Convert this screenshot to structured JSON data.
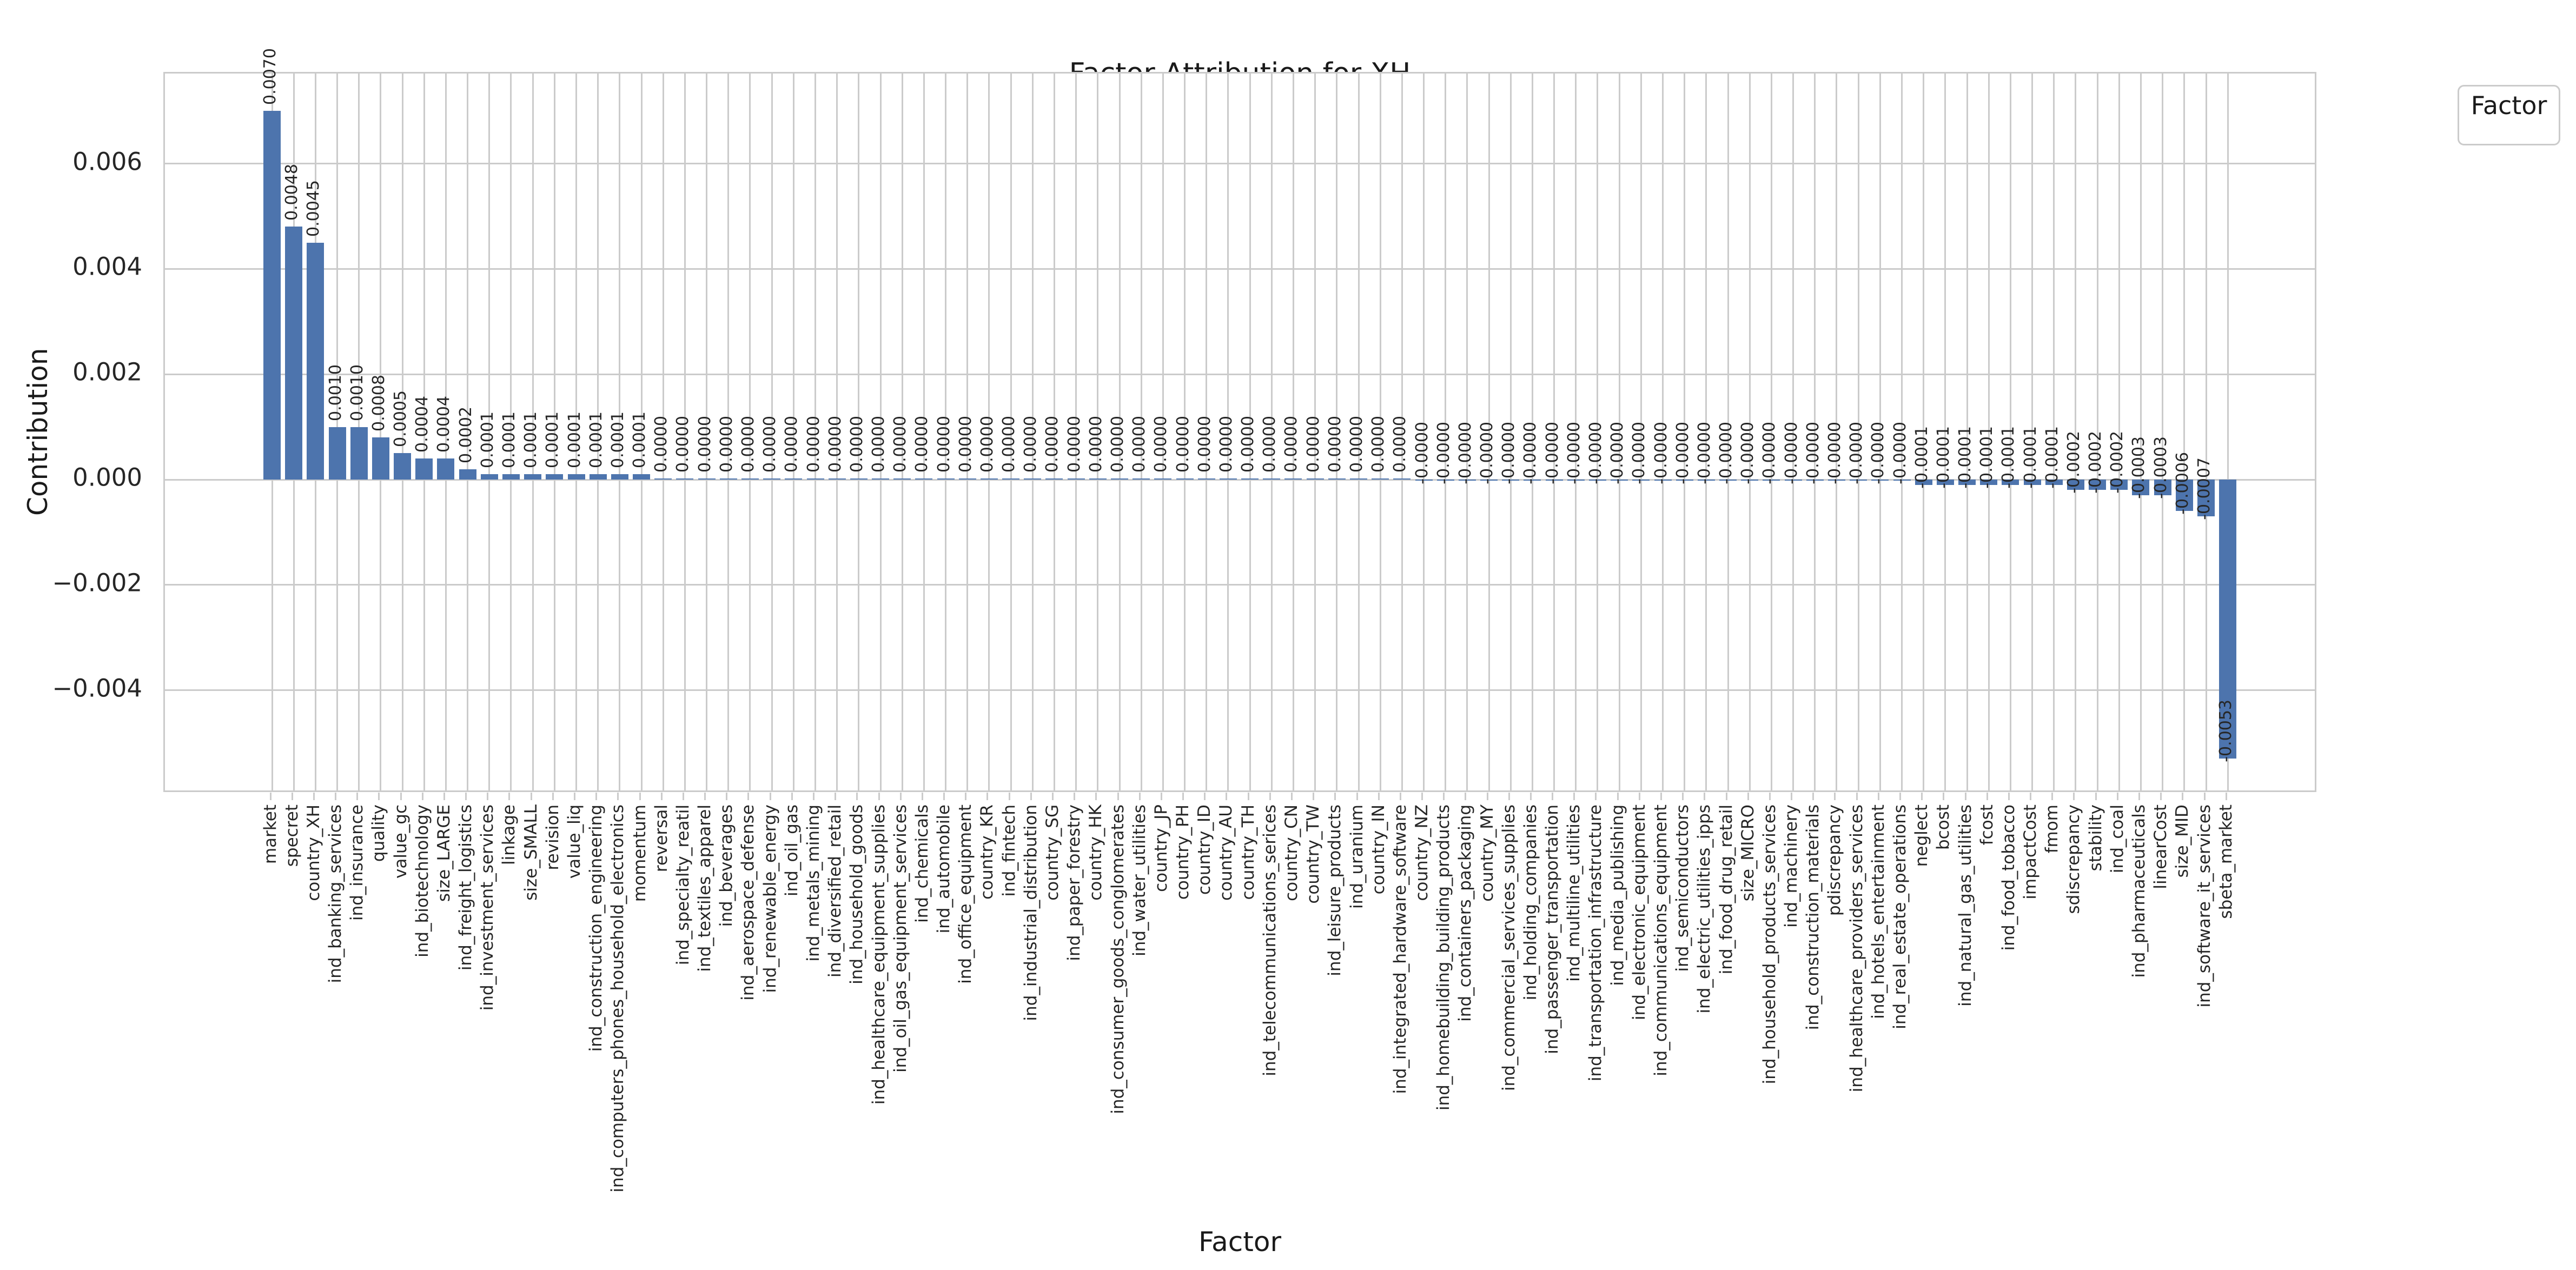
{
  "figure": {
    "title": "Factor Attribution for XH",
    "xlabel": "Factor",
    "ylabel": "Contribution"
  },
  "legend": {
    "title": "Factor",
    "position": "upper right, outside plot"
  },
  "colors": {
    "bar": "#4D74AD",
    "grid": "#cbcbcb",
    "text": "#262626",
    "background": "#ffffff"
  },
  "chart_data": {
    "type": "bar",
    "title": "Factor Attribution for XH",
    "xlabel": "Factor",
    "ylabel": "Contribution",
    "legend_title": "Factor",
    "grid": true,
    "ylim": [
      -0.006,
      0.0077
    ],
    "ytick_values": [
      0.006,
      0.004,
      0.002,
      0.0,
      -0.002,
      -0.004
    ],
    "ytick_labels": [
      "0.006",
      "0.004",
      "0.002",
      "0.000",
      "−0.002",
      "−0.004"
    ],
    "categories": [
      "market",
      "specret",
      "country_XH",
      "ind_banking_services",
      "ind_insurance",
      "quality",
      "value_gc",
      "ind_biotechnology",
      "size_LARGE",
      "ind_freight_logistics",
      "ind_investment_services",
      "linkage",
      "size_SMALL",
      "revision",
      "value_liq",
      "ind_construction_engineering",
      "ind_computers_phones_household_electronics",
      "momentum",
      "reversal",
      "ind_specialty_reatil",
      "ind_textiles_apparel",
      "ind_beverages",
      "ind_aerospace_defense",
      "ind_renewable_energy",
      "ind_oil_gas",
      "ind_metals_mining",
      "ind_diversified_retail",
      "ind_household_goods",
      "ind_healthcare_equipment_supplies",
      "ind_oil_gas_equipment_services",
      "ind_chemicals",
      "ind_automobile",
      "ind_office_equipment",
      "country_KR",
      "ind_fintech",
      "ind_industrial_distribution",
      "country_SG",
      "ind_paper_forestry",
      "country_HK",
      "ind_consumer_goods_conglomerates",
      "ind_water_utilities",
      "country_JP",
      "country_PH",
      "country_ID",
      "country_AU",
      "country_TH",
      "ind_telecommunications_serices",
      "country_CN",
      "country_TW",
      "ind_leisure_products",
      "ind_uranium",
      "country_IN",
      "ind_integrated_hardware_software",
      "country_NZ",
      "ind_homebuilding_building_products",
      "ind_containers_packaging",
      "country_MY",
      "ind_commercial_services_supplies",
      "ind_holding_companies",
      "ind_passenger_transportation",
      "ind_multiline_utilities",
      "ind_transportation_infrastructure",
      "ind_media_publishing",
      "ind_electronic_equipment",
      "ind_communications_equipment",
      "ind_semiconductors",
      "ind_electric_utilities_ipps",
      "ind_food_drug_retail",
      "size_MICRO",
      "ind_household_products_services",
      "ind_machinery",
      "ind_construction_materials",
      "pdiscrepancy",
      "ind_healthcare_providers_services",
      "ind_hotels_entertainment",
      "ind_real_estate_operations",
      "neglect",
      "bcost",
      "ind_natural_gas_utilities",
      "fcost",
      "ind_food_tobacco",
      "impactCost",
      "fmom",
      "sdiscrepancy",
      "stability",
      "ind_coal",
      "ind_pharmaceuticals",
      "linearCost",
      "size_MID",
      "ind_software_it_services",
      "sbeta_market"
    ],
    "values": [
      0.007,
      0.0048,
      0.0045,
      0.001,
      0.001,
      0.0008,
      0.0005,
      0.0004,
      0.0004,
      0.0002,
      0.0001,
      0.0001,
      0.0001,
      0.0001,
      0.0001,
      0.0001,
      0.0001,
      0.0001,
      0.0,
      0.0,
      0.0,
      0.0,
      0.0,
      0.0,
      0.0,
      0.0,
      0.0,
      0.0,
      0.0,
      0.0,
      0.0,
      0.0,
      0.0,
      0.0,
      0.0,
      0.0,
      0.0,
      0.0,
      0.0,
      0.0,
      0.0,
      0.0,
      0.0,
      0.0,
      0.0,
      0.0,
      0.0,
      0.0,
      0.0,
      0.0,
      0.0,
      0.0,
      0.0,
      -0.0,
      -0.0,
      -0.0,
      -0.0,
      -0.0,
      -0.0,
      -0.0,
      -0.0,
      -0.0,
      -0.0,
      -0.0,
      -0.0,
      -0.0,
      -0.0,
      -0.0,
      -0.0,
      -0.0,
      -0.0,
      -0.0,
      -0.0,
      -0.0,
      -0.0,
      -0.0,
      -0.0001,
      -0.0001,
      -0.0001,
      -0.0001,
      -0.0001,
      -0.0001,
      -0.0001,
      -0.0002,
      -0.0002,
      -0.0002,
      -0.0003,
      -0.0003,
      -0.0006,
      -0.0007,
      -0.0053
    ],
    "value_labels": [
      "0.0070",
      "0.0048",
      "0.0045",
      "0.0010",
      "0.0010",
      "0.0008",
      "0.0005",
      "0.0004",
      "0.0004",
      "0.0002",
      "0.0001",
      "0.0001",
      "0.0001",
      "0.0001",
      "0.0001",
      "0.0001",
      "0.0001",
      "0.0001",
      "0.0000",
      "0.0000",
      "0.0000",
      "0.0000",
      "0.0000",
      "0.0000",
      "0.0000",
      "0.0000",
      "0.0000",
      "0.0000",
      "0.0000",
      "0.0000",
      "0.0000",
      "0.0000",
      "0.0000",
      "0.0000",
      "0.0000",
      "0.0000",
      "0.0000",
      "0.0000",
      "0.0000",
      "0.0000",
      "0.0000",
      "0.0000",
      "0.0000",
      "0.0000",
      "0.0000",
      "0.0000",
      "0.0000",
      "0.0000",
      "0.0000",
      "0.0000",
      "0.0000",
      "0.0000",
      "0.0000",
      "-0.0000",
      "-0.0000",
      "-0.0000",
      "-0.0000",
      "-0.0000",
      "-0.0000",
      "-0.0000",
      "-0.0000",
      "-0.0000",
      "-0.0000",
      "-0.0000",
      "-0.0000",
      "-0.0000",
      "-0.0000",
      "-0.0000",
      "-0.0000",
      "-0.0000",
      "-0.0000",
      "-0.0000",
      "-0.0000",
      "-0.0000",
      "-0.0000",
      "-0.0000",
      "-0.0001",
      "-0.0001",
      "-0.0001",
      "-0.0001",
      "-0.0001",
      "-0.0001",
      "-0.0001",
      "-0.0002",
      "-0.0002",
      "-0.0002",
      "-0.0003",
      "-0.0003",
      "-0.0006",
      "-0.0007",
      "-0.0053"
    ]
  }
}
